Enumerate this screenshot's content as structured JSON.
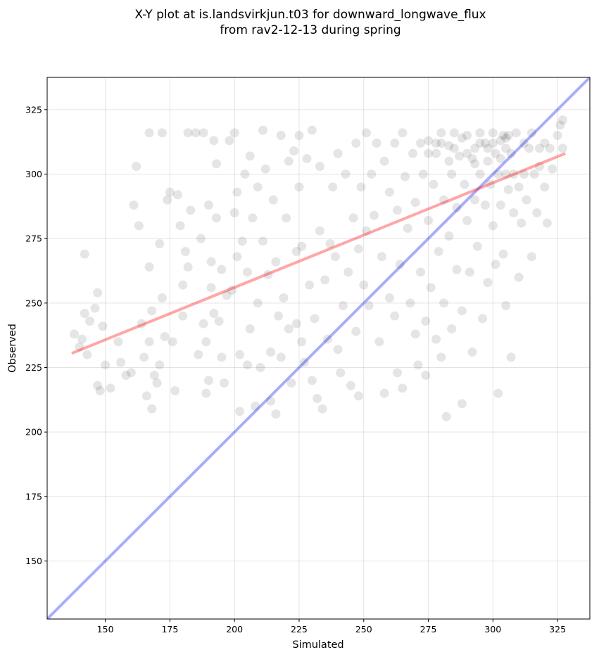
{
  "chart_data": {
    "type": "scatter",
    "title": [
      "X-Y plot at is.landsvirkjun.t03 for downward_longwave_flux",
      "from rav2-12-13 during spring"
    ],
    "xlabel": "Simulated",
    "ylabel": "Observed",
    "xlim": [
      127.5,
      337.5
    ],
    "ylim": [
      127.5,
      337.5
    ],
    "xticks": [
      150,
      175,
      200,
      225,
      250,
      275,
      300,
      325
    ],
    "yticks": [
      150,
      175,
      200,
      225,
      250,
      275,
      300,
      325
    ],
    "grid": true,
    "point_color": "#000000",
    "point_alpha": 0.1,
    "identity_line": {
      "color": "#0000ff",
      "alpha": 0.33,
      "from": [
        127.5,
        127.5
      ],
      "to": [
        337.5,
        337.5
      ]
    },
    "regression_line": {
      "color": "#ff0000",
      "alpha": 0.35,
      "from": [
        137,
        230.5
      ],
      "to": [
        328,
        308
      ]
    },
    "points": [
      [
        138,
        238
      ],
      [
        140,
        233
      ],
      [
        141,
        236
      ],
      [
        142,
        269
      ],
      [
        142,
        246
      ],
      [
        143,
        230
      ],
      [
        144,
        243
      ],
      [
        146,
        248
      ],
      [
        147,
        218
      ],
      [
        147,
        254
      ],
      [
        148,
        216
      ],
      [
        149,
        241
      ],
      [
        150,
        226
      ],
      [
        152,
        217
      ],
      [
        155,
        235
      ],
      [
        156,
        227
      ],
      [
        158,
        222
      ],
      [
        160,
        223
      ],
      [
        161,
        288
      ],
      [
        162,
        303
      ],
      [
        163,
        280
      ],
      [
        164,
        242
      ],
      [
        165,
        229
      ],
      [
        166,
        214
      ],
      [
        167,
        235
      ],
      [
        167,
        264
      ],
      [
        167,
        316
      ],
      [
        168,
        247
      ],
      [
        168,
        209
      ],
      [
        169,
        222
      ],
      [
        170,
        219
      ],
      [
        171,
        226
      ],
      [
        171,
        273
      ],
      [
        172,
        252
      ],
      [
        172,
        316
      ],
      [
        173,
        237
      ],
      [
        174,
        290
      ],
      [
        175,
        293
      ],
      [
        176,
        235
      ],
      [
        177,
        216
      ],
      [
        178,
        292
      ],
      [
        179,
        280
      ],
      [
        180,
        257
      ],
      [
        180,
        245
      ],
      [
        181,
        270
      ],
      [
        182,
        316
      ],
      [
        182,
        264
      ],
      [
        183,
        286
      ],
      [
        185,
        316
      ],
      [
        186,
        230
      ],
      [
        187,
        275
      ],
      [
        188,
        316
      ],
      [
        188,
        242
      ],
      [
        189,
        235
      ],
      [
        189,
        215
      ],
      [
        190,
        220
      ],
      [
        190,
        288
      ],
      [
        191,
        266
      ],
      [
        191,
        256
      ],
      [
        192,
        313
      ],
      [
        192,
        246
      ],
      [
        193,
        283
      ],
      [
        193,
        304
      ],
      [
        194,
        243
      ],
      [
        195,
        229
      ],
      [
        195,
        263
      ],
      [
        196,
        219
      ],
      [
        197,
        253
      ],
      [
        198,
        313
      ],
      [
        199,
        255
      ],
      [
        200,
        316
      ],
      [
        200,
        285
      ],
      [
        201,
        293
      ],
      [
        201,
        268
      ],
      [
        202,
        230
      ],
      [
        202,
        208
      ],
      [
        203,
        274
      ],
      [
        204,
        300
      ],
      [
        205,
        262
      ],
      [
        205,
        226
      ],
      [
        206,
        307
      ],
      [
        206,
        240
      ],
      [
        207,
        283
      ],
      [
        208,
        210
      ],
      [
        209,
        295
      ],
      [
        209,
        250
      ],
      [
        210,
        225
      ],
      [
        211,
        317
      ],
      [
        211,
        274
      ],
      [
        212,
        302
      ],
      [
        213,
        261
      ],
      [
        214,
        231
      ],
      [
        214,
        212
      ],
      [
        215,
        290
      ],
      [
        216,
        207
      ],
      [
        216,
        266
      ],
      [
        217,
        245
      ],
      [
        218,
        315
      ],
      [
        218,
        229
      ],
      [
        219,
        252
      ],
      [
        220,
        283
      ],
      [
        221,
        305
      ],
      [
        221,
        240
      ],
      [
        222,
        219
      ],
      [
        223,
        309
      ],
      [
        224,
        270
      ],
      [
        224,
        242
      ],
      [
        225,
        315
      ],
      [
        225,
        295
      ],
      [
        226,
        272
      ],
      [
        226,
        235
      ],
      [
        227,
        227
      ],
      [
        228,
        306
      ],
      [
        229,
        257
      ],
      [
        230,
        317
      ],
      [
        230,
        220
      ],
      [
        231,
        244
      ],
      [
        232,
        213
      ],
      [
        233,
        278
      ],
      [
        233,
        303
      ],
      [
        234,
        209
      ],
      [
        235,
        259
      ],
      [
        236,
        236
      ],
      [
        237,
        273
      ],
      [
        238,
        295
      ],
      [
        239,
        268
      ],
      [
        240,
        308
      ],
      [
        240,
        232
      ],
      [
        241,
        223
      ],
      [
        242,
        249
      ],
      [
        243,
        300
      ],
      [
        244,
        262
      ],
      [
        245,
        218
      ],
      [
        246,
        283
      ],
      [
        247,
        312
      ],
      [
        247,
        239
      ],
      [
        248,
        271
      ],
      [
        248,
        214
      ],
      [
        249,
        295
      ],
      [
        250,
        257
      ],
      [
        251,
        316
      ],
      [
        251,
        278
      ],
      [
        252,
        249
      ],
      [
        253,
        300
      ],
      [
        254,
        284
      ],
      [
        255,
        312
      ],
      [
        256,
        235
      ],
      [
        257,
        268
      ],
      [
        258,
        305
      ],
      [
        258,
        215
      ],
      [
        260,
        293
      ],
      [
        260,
        252
      ],
      [
        262,
        312
      ],
      [
        262,
        245
      ],
      [
        263,
        286
      ],
      [
        263,
        223
      ],
      [
        264,
        265
      ],
      [
        265,
        316
      ],
      [
        265,
        217
      ],
      [
        266,
        299
      ],
      [
        267,
        279
      ],
      [
        268,
        250
      ],
      [
        269,
        308
      ],
      [
        270,
        238
      ],
      [
        270,
        289
      ],
      [
        271,
        226
      ],
      [
        272,
        312
      ],
      [
        272,
        262
      ],
      [
        273,
        300
      ],
      [
        274,
        243
      ],
      [
        274,
        222
      ],
      [
        275,
        313
      ],
      [
        275,
        282
      ],
      [
        276,
        256
      ],
      [
        277,
        296
      ],
      [
        278,
        236
      ],
      [
        278,
        308
      ],
      [
        279,
        270
      ],
      [
        280,
        316
      ],
      [
        280,
        229
      ],
      [
        281,
        290
      ],
      [
        281,
        250
      ],
      [
        282,
        206
      ],
      [
        283,
        311
      ],
      [
        283,
        276
      ],
      [
        284,
        300
      ],
      [
        284,
        240
      ],
      [
        285,
        316
      ],
      [
        286,
        263
      ],
      [
        286,
        287
      ],
      [
        287,
        307
      ],
      [
        288,
        247
      ],
      [
        288,
        211
      ],
      [
        289,
        296
      ],
      [
        290,
        315
      ],
      [
        290,
        282
      ],
      [
        291,
        262
      ],
      [
        292,
        306
      ],
      [
        292,
        231
      ],
      [
        293,
        310
      ],
      [
        293,
        290
      ],
      [
        294,
        272
      ],
      [
        295,
        316
      ],
      [
        295,
        300
      ],
      [
        296,
        244
      ],
      [
        297,
        312
      ],
      [
        297,
        288
      ],
      [
        298,
        305
      ],
      [
        298,
        258
      ],
      [
        299,
        296
      ],
      [
        300,
        316
      ],
      [
        300,
        280
      ],
      [
        301,
        308
      ],
      [
        301,
        265
      ],
      [
        302,
        300
      ],
      [
        302,
        215
      ],
      [
        303,
        313
      ],
      [
        303,
        288
      ],
      [
        304,
        315
      ],
      [
        304,
        269
      ],
      [
        305,
        310
      ],
      [
        305,
        300
      ],
      [
        305,
        249
      ],
      [
        306,
        315
      ],
      [
        306,
        294
      ],
      [
        307,
        229
      ],
      [
        307,
        308
      ],
      [
        308,
        300
      ],
      [
        308,
        285
      ],
      [
        309,
        316
      ],
      [
        310,
        260
      ],
      [
        310,
        295
      ],
      [
        311,
        281
      ],
      [
        312,
        312
      ],
      [
        312,
        300
      ],
      [
        313,
        290
      ],
      [
        314,
        310
      ],
      [
        315,
        316
      ],
      [
        315,
        268
      ],
      [
        316,
        300
      ],
      [
        317,
        285
      ],
      [
        318,
        310
      ],
      [
        318,
        303
      ],
      [
        320,
        312
      ],
      [
        320,
        295
      ],
      [
        321,
        281
      ],
      [
        322,
        310
      ],
      [
        323,
        302
      ],
      [
        325,
        315
      ],
      [
        326,
        319
      ],
      [
        327,
        310
      ],
      [
        327,
        321
      ],
      [
        280,
        312
      ],
      [
        285,
        310
      ],
      [
        290,
        308
      ],
      [
        295,
        312
      ],
      [
        300,
        312
      ],
      [
        305,
        314
      ],
      [
        288,
        314
      ],
      [
        298,
        310
      ],
      [
        275,
        308
      ],
      [
        278,
        312
      ],
      [
        283,
        305
      ],
      [
        293,
        304
      ],
      [
        303,
        306
      ]
    ]
  }
}
